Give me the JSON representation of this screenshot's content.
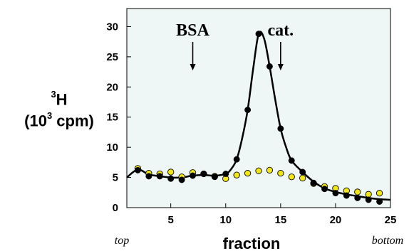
{
  "chart_data": {
    "type": "scatter",
    "xlabel": "fraction",
    "ylabel_unit_line": "cpm)",
    "ylabel_main": "H",
    "ylabel_sup": "3",
    "ylabel_prefix": "(10",
    "ylabel_prefix_sup": "3",
    "x_ticks": [
      5,
      10,
      15,
      20,
      25
    ],
    "y_ticks": [
      0,
      5,
      10,
      15,
      20,
      25,
      30
    ],
    "xlim": [
      1,
      25
    ],
    "ylim": [
      0,
      33
    ],
    "left_end_label": "top",
    "right_end_label": "bottom",
    "annotations": [
      {
        "text": "BSA",
        "x": 7
      },
      {
        "text": "cat.",
        "x": 15
      }
    ],
    "series": [
      {
        "color": "#000000",
        "x": [
          2,
          3,
          4,
          5,
          6,
          7,
          8,
          9,
          10,
          11,
          12,
          13,
          14,
          15,
          16,
          17,
          18,
          19,
          20,
          21,
          22,
          23,
          24
        ],
        "y": [
          6.2,
          5.2,
          5.2,
          4.8,
          4.6,
          5.3,
          5.6,
          5.1,
          5.6,
          8.0,
          16.2,
          28.8,
          23.4,
          13.1,
          7.8,
          5.9,
          4.1,
          3.1,
          2.4,
          2.0,
          1.6,
          1.3,
          1.0
        ]
      },
      {
        "color": "#f2e614",
        "x": [
          2,
          3,
          4,
          5,
          6,
          7,
          8,
          9,
          10,
          11,
          12,
          13,
          14,
          15,
          16,
          17,
          18,
          19,
          20,
          21,
          22,
          23,
          24
        ],
        "y": [
          6.5,
          5.7,
          5.6,
          5.9,
          5.1,
          5.8,
          5.6,
          5.2,
          4.8,
          5.4,
          5.7,
          6.1,
          6.2,
          5.7,
          5.1,
          4.9,
          4.0,
          3.5,
          3.2,
          2.8,
          2.6,
          2.2,
          2.4
        ]
      }
    ],
    "curve": {
      "color": "#000000",
      "x": [
        1,
        2,
        3,
        4,
        5,
        6,
        7,
        8,
        9,
        10,
        10.5,
        11,
        11.5,
        12,
        12.5,
        13,
        13.5,
        14,
        14.5,
        15,
        15.5,
        16,
        17,
        18,
        19,
        20,
        21,
        22,
        23,
        24,
        25
      ],
      "y": [
        5.0,
        6.3,
        5.5,
        5.2,
        5.0,
        5.0,
        5.3,
        5.4,
        5.3,
        5.6,
        6.4,
        8.0,
        11.5,
        16.2,
        23.0,
        28.8,
        28.0,
        23.4,
        18.0,
        13.1,
        10.0,
        7.8,
        5.9,
        4.3,
        3.2,
        2.6,
        2.2,
        1.9,
        1.6,
        1.4,
        1.3
      ]
    },
    "plot_background": "#eef7f5",
    "grid": false
  }
}
